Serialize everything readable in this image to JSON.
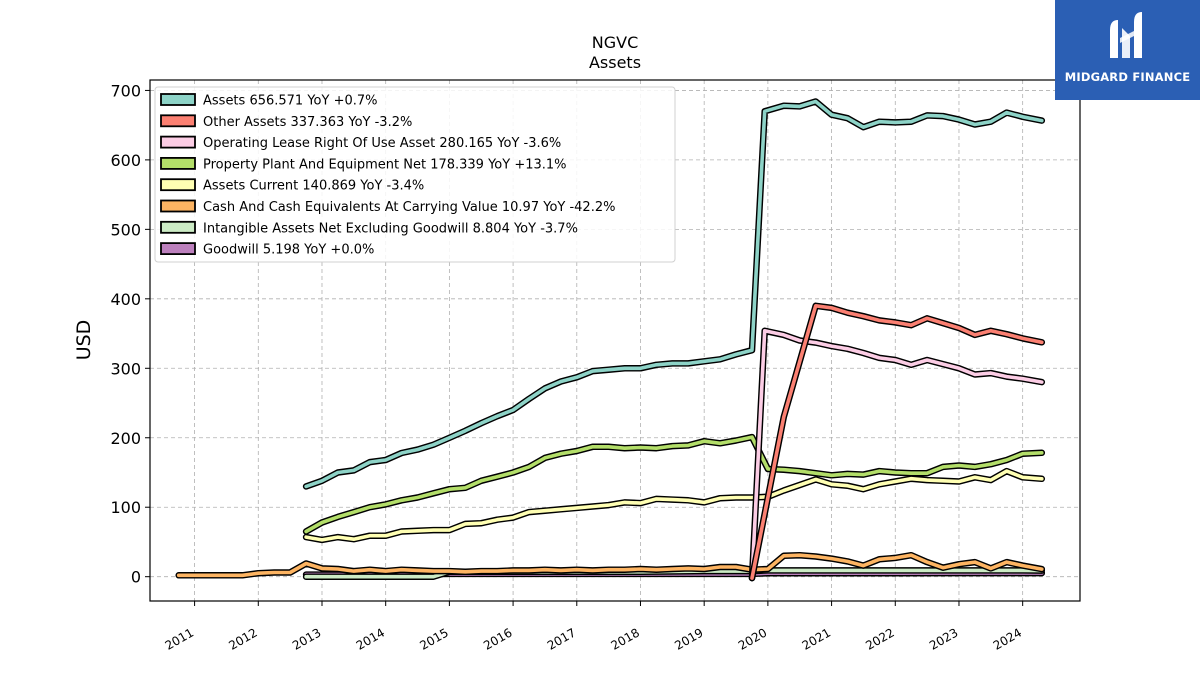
{
  "logo": {
    "text": "MIDGARD FINANCE",
    "icon": "midgard-logo-icon",
    "bg": "#2b5fb4"
  },
  "chart_data": {
    "type": "line",
    "title": [
      "NGVC",
      "Assets"
    ],
    "ylabel": "USD",
    "xlabel": "",
    "ylim": [
      -35,
      715
    ],
    "xlim": [
      2010.3,
      2024.9
    ],
    "y_ticks": [
      0,
      100,
      200,
      300,
      400,
      500,
      600,
      700
    ],
    "x_ticks": [
      "2011",
      "2012",
      "2013",
      "2014",
      "2015",
      "2016",
      "2017",
      "2018",
      "2019",
      "2020",
      "2021",
      "2022",
      "2023",
      "2024"
    ],
    "grid": true,
    "legend_position": "top-left",
    "series": [
      {
        "name": "Assets",
        "legend": "Assets  656.571 YoY +0.7%",
        "color": "#8dd3c7",
        "points": [
          [
            2012.75,
            130
          ],
          [
            2013.0,
            138
          ],
          [
            2013.25,
            150
          ],
          [
            2013.5,
            153
          ],
          [
            2013.75,
            165
          ],
          [
            2014.0,
            168
          ],
          [
            2014.25,
            178
          ],
          [
            2014.5,
            183
          ],
          [
            2014.75,
            190
          ],
          [
            2015.0,
            200
          ],
          [
            2015.25,
            210
          ],
          [
            2015.5,
            221
          ],
          [
            2015.75,
            231
          ],
          [
            2016.0,
            240
          ],
          [
            2016.25,
            256
          ],
          [
            2016.5,
            271
          ],
          [
            2016.75,
            281
          ],
          [
            2017.0,
            287
          ],
          [
            2017.25,
            296
          ],
          [
            2017.5,
            298
          ],
          [
            2017.75,
            300
          ],
          [
            2018.0,
            300
          ],
          [
            2018.25,
            305
          ],
          [
            2018.5,
            307
          ],
          [
            2018.75,
            307
          ],
          [
            2019.0,
            310
          ],
          [
            2019.25,
            313
          ],
          [
            2019.5,
            320
          ],
          [
            2019.75,
            326
          ],
          [
            2019.95,
            670
          ],
          [
            2020.25,
            678
          ],
          [
            2020.5,
            677
          ],
          [
            2020.75,
            684
          ],
          [
            2021.0,
            665
          ],
          [
            2021.25,
            660
          ],
          [
            2021.5,
            647
          ],
          [
            2021.75,
            655
          ],
          [
            2022.0,
            654
          ],
          [
            2022.25,
            655
          ],
          [
            2022.5,
            664
          ],
          [
            2022.75,
            663
          ],
          [
            2023.0,
            658
          ],
          [
            2023.25,
            651
          ],
          [
            2023.5,
            655
          ],
          [
            2023.75,
            668
          ],
          [
            2024.0,
            662
          ],
          [
            2024.3,
            656.571
          ]
        ]
      },
      {
        "name": "Other Assets",
        "legend": "Other Assets  337.363 YoY -3.2%",
        "color": "#fb8072",
        "points": [
          [
            2019.75,
            -2
          ],
          [
            2020.25,
            230
          ],
          [
            2020.75,
            390
          ],
          [
            2021.0,
            387
          ],
          [
            2021.25,
            380
          ],
          [
            2021.5,
            375
          ],
          [
            2021.75,
            369
          ],
          [
            2022.0,
            366
          ],
          [
            2022.25,
            362
          ],
          [
            2022.5,
            372
          ],
          [
            2022.75,
            365
          ],
          [
            2023.0,
            358
          ],
          [
            2023.25,
            348
          ],
          [
            2023.5,
            354
          ],
          [
            2023.75,
            349
          ],
          [
            2024.0,
            343
          ],
          [
            2024.3,
            337.363
          ]
        ]
      },
      {
        "name": "Operating Lease Right Of Use Asset",
        "legend": "Operating Lease Right Of Use Asset  280.165 YoY -3.6%",
        "color": "#fccde5",
        "points": [
          [
            2019.75,
            -2
          ],
          [
            2019.95,
            354
          ],
          [
            2020.25,
            348
          ],
          [
            2020.5,
            340
          ],
          [
            2020.75,
            337
          ],
          [
            2021.0,
            332
          ],
          [
            2021.25,
            328
          ],
          [
            2021.5,
            322
          ],
          [
            2021.75,
            315
          ],
          [
            2022.0,
            312
          ],
          [
            2022.25,
            305
          ],
          [
            2022.5,
            312
          ],
          [
            2022.75,
            306
          ],
          [
            2023.0,
            300
          ],
          [
            2023.25,
            291
          ],
          [
            2023.5,
            293
          ],
          [
            2023.75,
            288
          ],
          [
            2024.0,
            285
          ],
          [
            2024.3,
            280.165
          ]
        ]
      },
      {
        "name": "Property Plant And Equipment Net",
        "legend": "Property Plant And Equipment Net  178.339 YoY +13.1%",
        "color": "#b3de69",
        "points": [
          [
            2012.75,
            65
          ],
          [
            2013.0,
            78
          ],
          [
            2013.25,
            86
          ],
          [
            2013.5,
            93
          ],
          [
            2013.75,
            100
          ],
          [
            2014.0,
            104
          ],
          [
            2014.25,
            110
          ],
          [
            2014.5,
            114
          ],
          [
            2014.75,
            120
          ],
          [
            2015.0,
            126
          ],
          [
            2015.25,
            128
          ],
          [
            2015.5,
            138
          ],
          [
            2015.75,
            144
          ],
          [
            2016.0,
            150
          ],
          [
            2016.25,
            158
          ],
          [
            2016.5,
            171
          ],
          [
            2016.75,
            177
          ],
          [
            2017.0,
            181
          ],
          [
            2017.25,
            187
          ],
          [
            2017.5,
            187
          ],
          [
            2017.75,
            185
          ],
          [
            2018.0,
            186
          ],
          [
            2018.25,
            185
          ],
          [
            2018.5,
            188
          ],
          [
            2018.75,
            189
          ],
          [
            2019.0,
            195
          ],
          [
            2019.25,
            192
          ],
          [
            2019.5,
            196
          ],
          [
            2019.75,
            201
          ],
          [
            2020.0,
            155
          ],
          [
            2020.25,
            154
          ],
          [
            2020.5,
            152
          ],
          [
            2020.75,
            149
          ],
          [
            2021.0,
            146
          ],
          [
            2021.25,
            148
          ],
          [
            2021.5,
            147
          ],
          [
            2021.75,
            152
          ],
          [
            2022.0,
            150
          ],
          [
            2022.25,
            149
          ],
          [
            2022.5,
            149
          ],
          [
            2022.75,
            158
          ],
          [
            2023.0,
            160
          ],
          [
            2023.25,
            158
          ],
          [
            2023.5,
            162
          ],
          [
            2023.75,
            168
          ],
          [
            2024.0,
            177
          ],
          [
            2024.3,
            178.339
          ]
        ]
      },
      {
        "name": "Assets Current",
        "legend": "Assets Current  140.869 YoY -3.4%",
        "color": "#ffffb3",
        "points": [
          [
            2012.75,
            57
          ],
          [
            2013.0,
            53
          ],
          [
            2013.25,
            57
          ],
          [
            2013.5,
            54
          ],
          [
            2013.75,
            59
          ],
          [
            2014.0,
            59
          ],
          [
            2014.25,
            65
          ],
          [
            2014.5,
            66
          ],
          [
            2014.75,
            67
          ],
          [
            2015.0,
            67
          ],
          [
            2015.25,
            76
          ],
          [
            2015.5,
            77
          ],
          [
            2015.75,
            82
          ],
          [
            2016.0,
            85
          ],
          [
            2016.25,
            93
          ],
          [
            2016.5,
            95
          ],
          [
            2016.75,
            97
          ],
          [
            2017.0,
            99
          ],
          [
            2017.25,
            101
          ],
          [
            2017.5,
            103
          ],
          [
            2017.75,
            107
          ],
          [
            2018.0,
            106
          ],
          [
            2018.25,
            112
          ],
          [
            2018.5,
            111
          ],
          [
            2018.75,
            110
          ],
          [
            2019.0,
            107
          ],
          [
            2019.25,
            113
          ],
          [
            2019.5,
            114
          ],
          [
            2019.75,
            114
          ],
          [
            2020.0,
            115
          ],
          [
            2020.25,
            124
          ],
          [
            2020.5,
            132
          ],
          [
            2020.75,
            140
          ],
          [
            2021.0,
            133
          ],
          [
            2021.25,
            131
          ],
          [
            2021.5,
            126
          ],
          [
            2021.75,
            133
          ],
          [
            2022.0,
            137
          ],
          [
            2022.25,
            141
          ],
          [
            2022.5,
            139
          ],
          [
            2022.75,
            138
          ],
          [
            2023.0,
            137
          ],
          [
            2023.25,
            143
          ],
          [
            2023.5,
            139
          ],
          [
            2023.75,
            152
          ],
          [
            2024.0,
            143
          ],
          [
            2024.3,
            140.869
          ]
        ]
      },
      {
        "name": "Cash And Cash Equivalents At Carrying Value",
        "legend": "Cash And Cash Equivalents At Carrying Value  10.97 YoY -42.2%",
        "color": "#fdb462",
        "points": [
          [
            2010.75,
            2
          ],
          [
            2011.0,
            2
          ],
          [
            2011.25,
            2
          ],
          [
            2011.5,
            2
          ],
          [
            2011.75,
            2
          ],
          [
            2012.0,
            5
          ],
          [
            2012.25,
            6
          ],
          [
            2012.5,
            6
          ],
          [
            2012.75,
            19
          ],
          [
            2013.0,
            12
          ],
          [
            2013.25,
            11
          ],
          [
            2013.5,
            8
          ],
          [
            2013.75,
            10
          ],
          [
            2014.0,
            8
          ],
          [
            2014.25,
            10
          ],
          [
            2014.5,
            9
          ],
          [
            2014.75,
            8
          ],
          [
            2015.0,
            8
          ],
          [
            2015.25,
            7
          ],
          [
            2015.5,
            8
          ],
          [
            2015.75,
            8
          ],
          [
            2016.0,
            9
          ],
          [
            2016.25,
            9
          ],
          [
            2016.5,
            10
          ],
          [
            2016.75,
            9
          ],
          [
            2017.0,
            10
          ],
          [
            2017.25,
            9
          ],
          [
            2017.5,
            10
          ],
          [
            2017.75,
            10
          ],
          [
            2018.0,
            11
          ],
          [
            2018.25,
            10
          ],
          [
            2018.5,
            11
          ],
          [
            2018.75,
            12
          ],
          [
            2019.0,
            11
          ],
          [
            2019.25,
            14
          ],
          [
            2019.5,
            14
          ],
          [
            2019.75,
            10
          ],
          [
            2020.0,
            11
          ],
          [
            2020.25,
            30
          ],
          [
            2020.5,
            31
          ],
          [
            2020.75,
            29
          ],
          [
            2021.0,
            26
          ],
          [
            2021.25,
            22
          ],
          [
            2021.5,
            16
          ],
          [
            2021.75,
            25
          ],
          [
            2022.0,
            27
          ],
          [
            2022.25,
            31
          ],
          [
            2022.5,
            21
          ],
          [
            2022.75,
            13
          ],
          [
            2023.0,
            18
          ],
          [
            2023.25,
            21
          ],
          [
            2023.5,
            12
          ],
          [
            2023.75,
            21
          ],
          [
            2024.0,
            16
          ],
          [
            2024.3,
            10.97
          ]
        ]
      },
      {
        "name": "Intangible Assets Net Excluding Goodwill",
        "legend": "Intangible Assets Net Excluding Goodwill  8.804 YoY -3.7%",
        "color": "#ccebc5",
        "points": [
          [
            2012.75,
            0
          ],
          [
            2013.0,
            0
          ],
          [
            2014.0,
            0
          ],
          [
            2014.75,
            0
          ],
          [
            2015.0,
            7
          ],
          [
            2016.0,
            7
          ],
          [
            2017.0,
            7
          ],
          [
            2018.0,
            7
          ],
          [
            2019.0,
            8
          ],
          [
            2019.75,
            8
          ],
          [
            2020.0,
            9
          ],
          [
            2021.0,
            9
          ],
          [
            2022.0,
            9
          ],
          [
            2023.0,
            9
          ],
          [
            2024.0,
            9
          ],
          [
            2024.3,
            8.804
          ]
        ]
      },
      {
        "name": "Goodwill",
        "legend": "Goodwill  5.198 YoY +0.0%",
        "color": "#bc80bd",
        "points": [
          [
            2012.75,
            3
          ],
          [
            2013.0,
            3
          ],
          [
            2014.0,
            3
          ],
          [
            2015.0,
            4
          ],
          [
            2016.0,
            4
          ],
          [
            2017.0,
            4
          ],
          [
            2018.0,
            4
          ],
          [
            2019.0,
            4
          ],
          [
            2019.75,
            4
          ],
          [
            2020.0,
            5
          ],
          [
            2021.0,
            5
          ],
          [
            2022.0,
            5
          ],
          [
            2023.0,
            5.198
          ],
          [
            2024.0,
            5.198
          ],
          [
            2024.3,
            5.198
          ]
        ]
      }
    ]
  }
}
